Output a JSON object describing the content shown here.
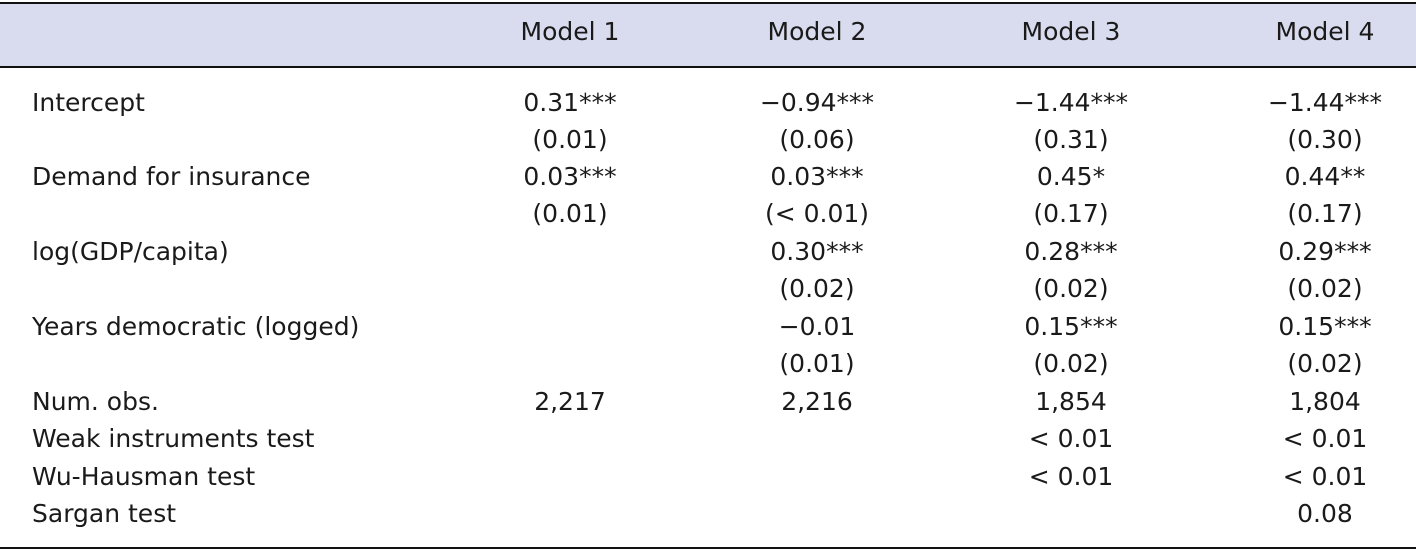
{
  "columns": [
    "Model 1",
    "Model 2",
    "Model 3",
    "Model 4"
  ],
  "rows": [
    {
      "label": "Intercept",
      "values": [
        "0.31***",
        "−0.94***",
        "−1.44***",
        "−1.44***"
      ]
    },
    {
      "label": "",
      "values": [
        "(0.01)",
        "(0.06)",
        "(0.31)",
        "(0.30)"
      ]
    },
    {
      "label": "Demand for insurance",
      "values": [
        "0.03***",
        "0.03***",
        "0.45*",
        "0.44**"
      ]
    },
    {
      "label": "",
      "values": [
        "(0.01)",
        "(< 0.01)",
        "(0.17)",
        "(0.17)"
      ]
    },
    {
      "label": "log(GDP/capita)",
      "values": [
        "",
        "0.30***",
        "0.28***",
        "0.29***"
      ]
    },
    {
      "label": "",
      "values": [
        "",
        "(0.02)",
        "(0.02)",
        "(0.02)"
      ]
    },
    {
      "label": "Years democratic (logged)",
      "values": [
        "",
        "−0.01",
        "0.15***",
        "0.15***"
      ]
    },
    {
      "label": "",
      "values": [
        "",
        "(0.01)",
        "(0.02)",
        "(0.02)"
      ]
    },
    {
      "label": "Num. obs.",
      "values": [
        "2,217",
        "2,216",
        "1,854",
        "1,804"
      ]
    },
    {
      "label": "Weak instruments test",
      "values": [
        "",
        "",
        "< 0.01",
        "< 0.01"
      ]
    },
    {
      "label": "Wu-Hausman test",
      "values": [
        "",
        "",
        "< 0.01",
        "< 0.01"
      ]
    },
    {
      "label": "Sargan test",
      "values": [
        "",
        "",
        "",
        "0.08"
      ]
    }
  ]
}
